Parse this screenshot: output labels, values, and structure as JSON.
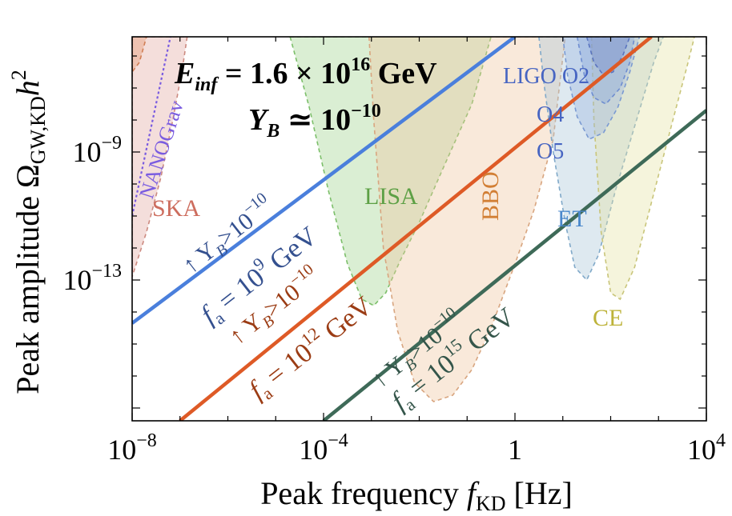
{
  "chart_data": {
    "type": "line",
    "title_line1": {
      "E": "E",
      "sub": "inf",
      "eq": " = 1.6 × 10",
      "exp": "16",
      "unit": " GeV"
    },
    "title_line2": {
      "Y": "Y",
      "sub": "B",
      "eq": " ≃ 10",
      "exp": "−10"
    },
    "xlabel": {
      "pre": "Peak frequency ",
      "f": "f",
      "sub": "KD",
      "unit": " [Hz]"
    },
    "ylabel": {
      "pre": "Peak amplitude Ω",
      "sub": "GW,KD",
      "h": "h",
      "sup": "2"
    },
    "x_log_range": [
      -8,
      4
    ],
    "y_log_range": [
      -17.4,
      -5.4
    ],
    "x_ticks": [
      {
        "log": -8,
        "base": "10",
        "exp": "−8"
      },
      {
        "log": -4,
        "base": "10",
        "exp": "−4"
      },
      {
        "log": 0,
        "base": "1",
        "exp": ""
      },
      {
        "log": 4,
        "base": "10",
        "exp": "4"
      }
    ],
    "y_ticks": [
      {
        "log": -9,
        "base": "10",
        "exp": "−9"
      },
      {
        "log": -13,
        "base": "10",
        "exp": "−13"
      }
    ],
    "series": [
      {
        "name": "fa1e9",
        "color": "#4a7fdc",
        "label_color": "#34508f",
        "x_log": [
          -8,
          0.0
        ],
        "y_log": [
          -14.35,
          -5.4
        ],
        "label_top": "↑ Y",
        "label_top_sub": "B",
        "label_top_rest": ">10",
        "label_top_exp": "−10",
        "label_bot": "f",
        "label_bot_sub": "a",
        "label_bot_rest": " = 10",
        "label_bot_exp": "9",
        "label_bot_unit": " GeV"
      },
      {
        "name": "fa1e12",
        "color": "#de5a26",
        "label_color": "#9b3c14",
        "x_log": [
          -7.0,
          2.85
        ],
        "y_log": [
          -17.4,
          -5.4
        ],
        "label_top": "↑ Y",
        "label_top_sub": "B",
        "label_top_rest": ">10",
        "label_top_exp": "−10",
        "label_bot": "f",
        "label_bot_sub": "a",
        "label_bot_rest": " = 10",
        "label_bot_exp": "12",
        "label_bot_unit": " GeV"
      },
      {
        "name": "fa1e15",
        "color": "#3e6a58",
        "label_color": "#34554a",
        "x_log": [
          -4.0,
          4.0
        ],
        "y_log": [
          -17.4,
          -7.7
        ],
        "label_top": "↑ Y",
        "label_top_sub": "B",
        "label_top_rest": ">10",
        "label_top_exp": "−10",
        "label_bot": "f",
        "label_bot_sub": "a",
        "label_bot_rest": " = 10",
        "label_bot_exp": "15",
        "label_bot_unit": " GeV"
      }
    ],
    "sensitivity_curves": [
      {
        "name": "LISA",
        "label": "LISA",
        "fill": "#9fd28c",
        "stroke": "#7cbf6a",
        "label_color": "#5da045",
        "points": [
          [
            -4.7,
            -5.4
          ],
          [
            -4.3,
            -7.6
          ],
          [
            -3.9,
            -10.2
          ],
          [
            -3.5,
            -12.5
          ],
          [
            -3.2,
            -13.6
          ],
          [
            -2.95,
            -13.8
          ],
          [
            -2.7,
            -13.4
          ],
          [
            -2.4,
            -12.4
          ],
          [
            -2.0,
            -11.2
          ],
          [
            -1.5,
            -9.5
          ],
          [
            -0.9,
            -7.5
          ],
          [
            -0.5,
            -5.4
          ]
        ]
      },
      {
        "name": "BBO",
        "label": "BBO",
        "fill": "#f0c59f",
        "stroke": "#d8a57f",
        "label_color": "#d27f35",
        "points": [
          [
            -3.05,
            -5.4
          ],
          [
            -2.95,
            -8.0
          ],
          [
            -2.75,
            -12.0
          ],
          [
            -2.45,
            -14.6
          ],
          [
            -2.1,
            -16.2
          ],
          [
            -1.7,
            -16.8
          ],
          [
            -1.3,
            -16.6
          ],
          [
            -0.9,
            -15.8
          ],
          [
            -0.5,
            -14.5
          ],
          [
            0.0,
            -12.5
          ],
          [
            0.4,
            -10.8
          ],
          [
            0.8,
            -8.6
          ],
          [
            1.05,
            -5.4
          ]
        ]
      },
      {
        "name": "ET",
        "label": "ET",
        "fill": "#a8c6d8",
        "stroke": "#80a9c9",
        "label_color": "#4a88cc",
        "points": [
          [
            0.5,
            -5.4
          ],
          [
            0.6,
            -6.8
          ],
          [
            0.8,
            -9.0
          ],
          [
            1.05,
            -11.2
          ],
          [
            1.25,
            -12.6
          ],
          [
            1.5,
            -13.0
          ],
          [
            1.75,
            -12.2
          ],
          [
            2.1,
            -10.2
          ],
          [
            2.5,
            -8.2
          ],
          [
            2.9,
            -6.2
          ],
          [
            3.1,
            -5.4
          ]
        ]
      },
      {
        "name": "CE",
        "label": "CE",
        "fill": "#e4e2a3",
        "stroke": "#c9c57a",
        "label_color": "#bdb33a",
        "points": [
          [
            1.6,
            -5.4
          ],
          [
            1.65,
            -8.0
          ],
          [
            1.8,
            -11.5
          ],
          [
            2.0,
            -13.4
          ],
          [
            2.2,
            -13.6
          ],
          [
            2.5,
            -12.6
          ],
          [
            2.9,
            -10.3
          ],
          [
            3.3,
            -8.0
          ],
          [
            3.6,
            -6.3
          ],
          [
            3.75,
            -5.4
          ]
        ]
      },
      {
        "name": "LIGO O5",
        "label": "O5",
        "fill": "#9bb6e0",
        "stroke": "#7a9ad2",
        "label_color": "#4765c2",
        "points": [
          [
            1.0,
            -5.4
          ],
          [
            1.1,
            -6.6
          ],
          [
            1.3,
            -7.9
          ],
          [
            1.55,
            -8.6
          ],
          [
            1.85,
            -8.4
          ],
          [
            2.15,
            -7.6
          ],
          [
            2.4,
            -6.5
          ],
          [
            2.6,
            -5.4
          ]
        ]
      },
      {
        "name": "LIGO O4",
        "label": "O4",
        "fill": "#8aa5da",
        "stroke": "#6e8dd0",
        "label_color": "#4765c2",
        "points": [
          [
            1.3,
            -5.4
          ],
          [
            1.45,
            -6.6
          ],
          [
            1.65,
            -7.3
          ],
          [
            1.9,
            -7.5
          ],
          [
            2.2,
            -7.0
          ],
          [
            2.4,
            -6.2
          ],
          [
            2.5,
            -5.4
          ]
        ]
      },
      {
        "name": "LIGO O2",
        "label": "LIGO O2",
        "fill": "#6f87cc",
        "stroke": "#5a74bf",
        "label_color": "#4765c2",
        "points": [
          [
            1.5,
            -5.4
          ],
          [
            1.65,
            -6.2
          ],
          [
            1.85,
            -6.6
          ],
          [
            2.05,
            -6.5
          ],
          [
            2.25,
            -6.0
          ],
          [
            2.4,
            -5.4
          ]
        ]
      },
      {
        "name": "SKA",
        "label": "SKA",
        "fill": "#e3a9a0",
        "stroke": "#cc8a80",
        "label_color": "#cd6d5e",
        "points": [
          [
            -8.0,
            -5.4
          ],
          [
            -8.0,
            -12.9
          ],
          [
            -7.7,
            -11.5
          ],
          [
            -7.4,
            -9.8
          ],
          [
            -7.15,
            -8.0
          ],
          [
            -6.95,
            -6.4
          ],
          [
            -6.85,
            -5.4
          ]
        ]
      },
      {
        "name": "NANOGrav",
        "label": "NANOGrav",
        "fill": "#e5956c",
        "stroke": "#d07e55",
        "label_color": "#7a5ce0",
        "points": [
          [
            -8.0,
            -5.4
          ],
          [
            -8.0,
            -6.5
          ],
          [
            -7.85,
            -6.2
          ],
          [
            -7.7,
            -5.4
          ]
        ]
      }
    ],
    "nanograv_line": {
      "color": "#7a5ce0",
      "x_log": [
        -8.0,
        -7.2
      ],
      "y_log": [
        -11.0,
        -5.4
      ]
    }
  }
}
